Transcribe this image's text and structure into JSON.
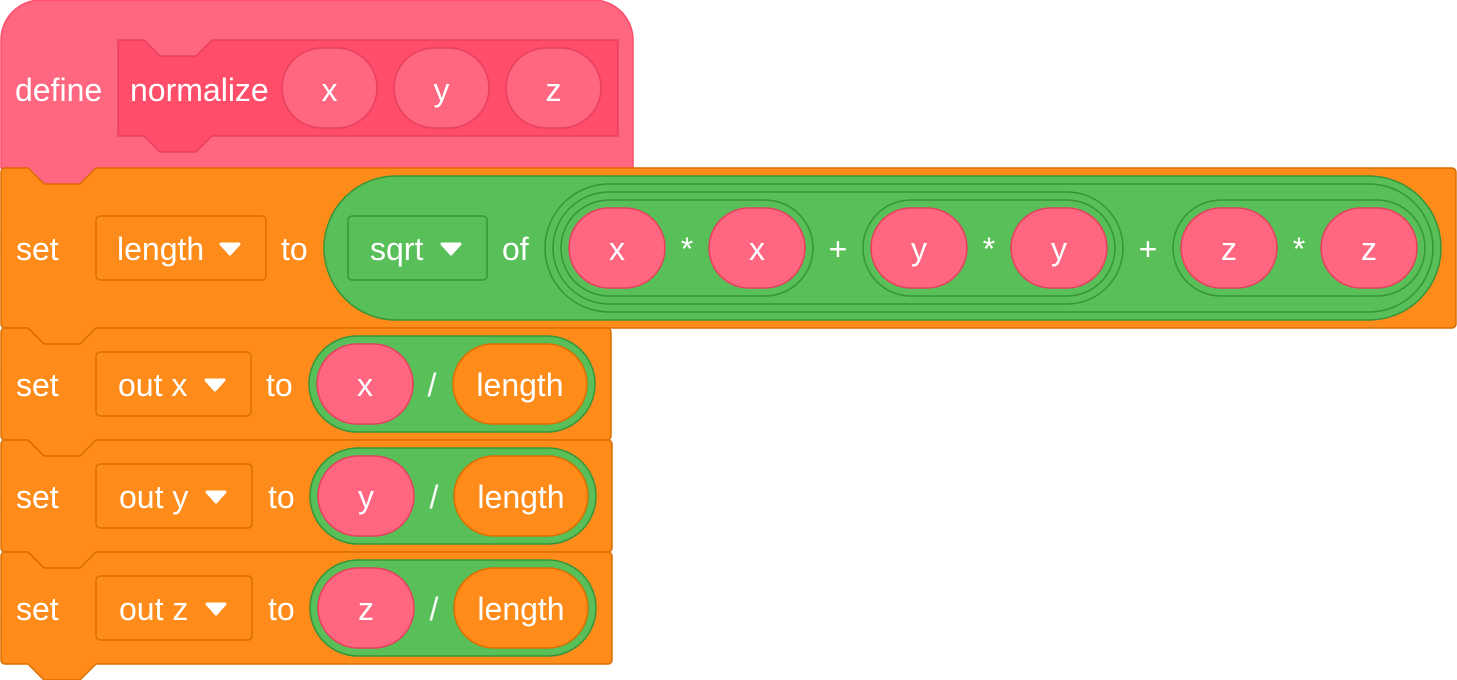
{
  "colors": {
    "define_fill": "#FF6680",
    "define_stroke": "#FF4D6A",
    "proto_fill": "#FF4D6A",
    "arg_fill": "#FF6680",
    "arg_stroke": "#E6405E",
    "variables_fill": "#FF8C1A",
    "variables_stroke": "#DB6E00",
    "operators_fill": "#59C059",
    "operators_stroke": "#389438",
    "text": "#FFFFFF"
  },
  "define_block": {
    "keyword": "define",
    "proc_name": "normalize",
    "params": [
      "x",
      "y",
      "z"
    ]
  },
  "set_length": {
    "keyword": "set",
    "variable": "length",
    "to": "to",
    "func": "sqrt",
    "of": "of",
    "terms": [
      {
        "a": "x",
        "op": "*",
        "b": "x"
      },
      {
        "a": "y",
        "op": "*",
        "b": "y"
      },
      {
        "a": "z",
        "op": "*",
        "b": "z"
      }
    ],
    "plus": "+"
  },
  "set_out": [
    {
      "keyword": "set",
      "variable": "out x",
      "to": "to",
      "arg": "x",
      "op": "/",
      "divisor": "length"
    },
    {
      "keyword": "set",
      "variable": "out y",
      "to": "to",
      "arg": "y",
      "op": "/",
      "divisor": "length"
    },
    {
      "keyword": "set",
      "variable": "out z",
      "to": "to",
      "arg": "z",
      "op": "/",
      "divisor": "length"
    }
  ],
  "icons": {
    "dropdown": "chevron-down-icon"
  }
}
